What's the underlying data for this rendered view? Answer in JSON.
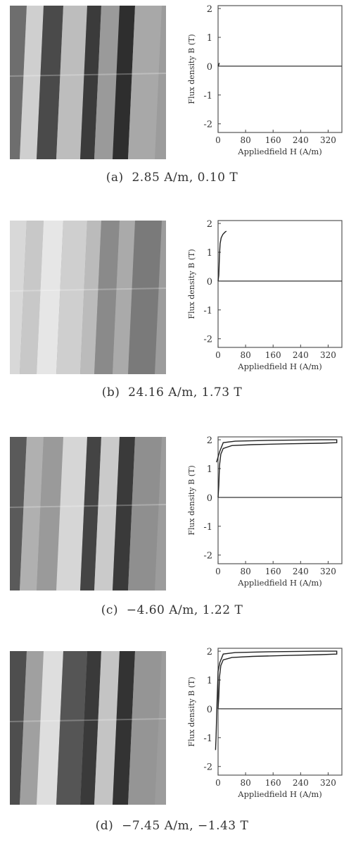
{
  "panels": [
    {
      "caption": "(a)  2.85 A/m, 0.10 T",
      "photo_stripes": [
        "#6e6e6e",
        "#cfcfcf",
        "#4a4a4a",
        "#bdbdbd",
        "#3b3b3b",
        "#9a9a9a",
        "#2e2e2e",
        "#a8a8a8"
      ],
      "chart_data": {
        "type": "line",
        "ylabel": "Flux density B (T)",
        "xlabel": "Appliedfield H (A/m)",
        "xticks": [
          "0",
          "80",
          "160",
          "240",
          "320"
        ],
        "yticks": [
          "2",
          "1",
          "0",
          "-1",
          "-2"
        ],
        "xlim": [
          0,
          360
        ],
        "ylim": [
          -2.3,
          2.1
        ],
        "series": [
          {
            "x": [
              0,
              2,
              3,
              2.85
            ],
            "y": [
              0,
              0.05,
              0.1,
              0.1
            ]
          }
        ]
      }
    },
    {
      "caption": "(b)  24.16 A/m, 1.73 T",
      "photo_stripes": [
        "#d8d8d8",
        "#c8c8c8",
        "#e6e6e6",
        "#cfcfcf",
        "#bbbbbb",
        "#8a8a8a",
        "#aaaaaa",
        "#7a7a7a"
      ],
      "chart_data": {
        "type": "line",
        "ylabel": "Flux density B (T)",
        "xlabel": "Appliedfield H (A/m)",
        "xticks": [
          "0",
          "80",
          "160",
          "240",
          "320"
        ],
        "yticks": [
          "2",
          "1",
          "0",
          "-1",
          "-2"
        ],
        "xlim": [
          0,
          360
        ],
        "ylim": [
          -2.3,
          2.1
        ],
        "series": [
          {
            "x": [
              0,
              2,
              4,
              6,
              9,
              14,
              20,
              24.16
            ],
            "y": [
              0,
              0.2,
              0.9,
              1.3,
              1.5,
              1.62,
              1.7,
              1.73
            ]
          }
        ]
      }
    },
    {
      "caption": "(c)  −4.60 A/m, 1.22 T",
      "photo_stripes": [
        "#5a5a5a",
        "#b0b0b0",
        "#9a9a9a",
        "#d6d6d6",
        "#444444",
        "#cacaca",
        "#3a3a3a",
        "#8f8f8f"
      ],
      "chart_data": {
        "type": "line",
        "ylabel": "Flux density B (T)",
        "xlabel": "Appliedfield H (A/m)",
        "xticks": [
          "0",
          "80",
          "160",
          "240",
          "320"
        ],
        "yticks": [
          "2",
          "1",
          "0",
          "-1",
          "-2"
        ],
        "xlim": [
          0,
          360
        ],
        "ylim": [
          -2.3,
          2.1
        ],
        "series": [
          {
            "x": [
              0,
              2,
              4,
              8,
              15,
              40,
              100,
              200,
              300,
              345,
              345,
              300,
              150,
              50,
              15,
              5,
              0,
              -4.6
            ],
            "y": [
              0,
              0.4,
              1.1,
              1.5,
              1.7,
              1.8,
              1.83,
              1.86,
              1.88,
              1.9,
              2.0,
              2.0,
              1.98,
              1.95,
              1.9,
              1.6,
              1.4,
              1.22
            ]
          }
        ]
      }
    },
    {
      "caption": "(d)  −7.45 A/m, −1.43 T",
      "photo_stripes": [
        "#4e4e4e",
        "#a0a0a0",
        "#dedede",
        "#555555",
        "#3a3a3a",
        "#c4c4c4",
        "#333333",
        "#959595"
      ],
      "chart_data": {
        "type": "line",
        "ylabel": "Flux density B (T)",
        "xlabel": "Appliedfield H (A/m)",
        "xticks": [
          "0",
          "80",
          "160",
          "240",
          "320"
        ],
        "yticks": [
          "2",
          "1",
          "0",
          "-1",
          "-2"
        ],
        "xlim": [
          0,
          360
        ],
        "ylim": [
          -2.3,
          2.1
        ],
        "series": [
          {
            "x": [
              0,
              2,
              4,
              8,
              15,
              40,
              100,
              200,
              300,
              345,
              345,
              300,
              150,
              50,
              15,
              5,
              0,
              -3,
              -6,
              -7.45
            ],
            "y": [
              0,
              0.4,
              1.1,
              1.5,
              1.7,
              1.78,
              1.82,
              1.85,
              1.88,
              1.9,
              2.0,
              2.0,
              1.98,
              1.95,
              1.9,
              1.6,
              1.3,
              0.2,
              -1.0,
              -1.43
            ]
          }
        ]
      }
    }
  ]
}
